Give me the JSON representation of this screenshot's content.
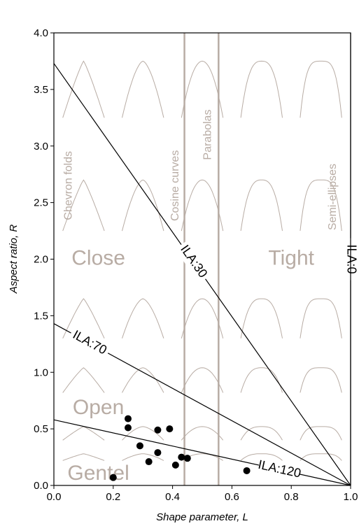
{
  "chart_data": {
    "type": "scatter",
    "x_label": "Shape parameter, L",
    "y_label": "Aspect ratio, R",
    "xlim": [
      0,
      1
    ],
    "ylim": [
      0,
      4
    ],
    "xticks": [
      {
        "value": 0,
        "label": "0.0"
      },
      {
        "value": 0.2,
        "label": "0.2"
      },
      {
        "value": 0.4,
        "label": "0.4"
      },
      {
        "value": 0.6,
        "label": "0.6"
      },
      {
        "value": 0.8,
        "label": "0.8"
      },
      {
        "value": 1,
        "label": "1.0"
      }
    ],
    "yticks": [
      {
        "value": 0,
        "label": "0.0"
      },
      {
        "value": 0.5,
        "label": "0.5"
      },
      {
        "value": 1,
        "label": "1.0"
      },
      {
        "value": 1.5,
        "label": "1.5"
      },
      {
        "value": 2,
        "label": "2.0"
      },
      {
        "value": 2.5,
        "label": "2.5"
      },
      {
        "value": 3,
        "label": "3.0"
      },
      {
        "value": 3.5,
        "label": "3.5"
      },
      {
        "value": 4,
        "label": "4.0"
      }
    ],
    "series": [
      {
        "color": "#000000",
        "x": [
          0.25,
          0.25,
          0.35,
          0.39,
          0.29,
          0.35,
          0.32,
          0.43,
          0.45,
          0.41,
          0.65,
          0.2
        ],
        "values": [
          0.59,
          0.51,
          0.49,
          0.5,
          0.35,
          0.29,
          0.21,
          0.25,
          0.24,
          0.18,
          0.13,
          0.07
        ]
      }
    ],
    "lines": [
      {
        "label": "ILA:30",
        "x": [
          0,
          1
        ],
        "y": [
          3.73,
          0
        ]
      },
      {
        "label": "ILA:70",
        "x": [
          0,
          1
        ],
        "y": [
          1.43,
          0
        ]
      },
      {
        "label": "ILA:120",
        "x": [
          0,
          1
        ],
        "y": [
          0.58,
          0
        ]
      },
      {
        "label": "ILA:0",
        "x": [
          1,
          1
        ],
        "y": [
          4,
          0
        ]
      }
    ],
    "boundaries": [
      0.44,
      0.555
    ],
    "shape_labels": [
      "Chevron folds",
      "Cosine curves",
      "Parabolas",
      "Semi-ellipses"
    ],
    "regions": [
      "Close",
      "Tight",
      "Open",
      "Gentel"
    ]
  }
}
